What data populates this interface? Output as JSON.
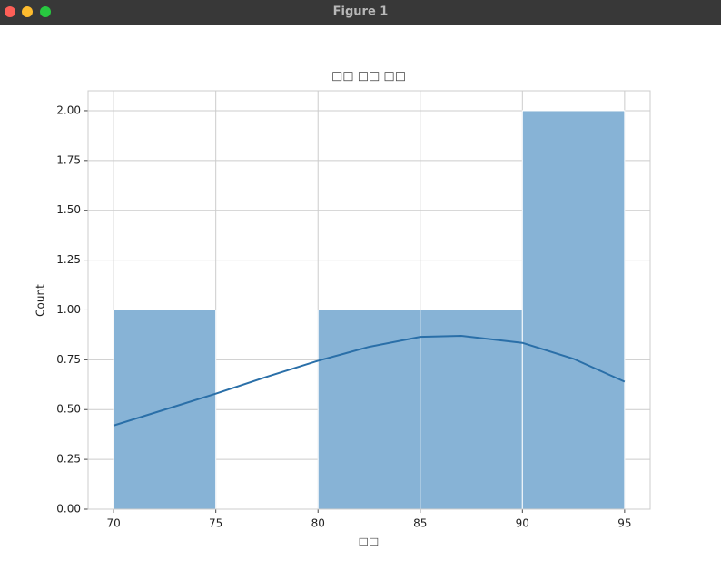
{
  "window": {
    "title": "Figure 1"
  },
  "chart_data": {
    "type": "histogram",
    "title": "□□ □□ □□",
    "xlabel": "□□",
    "ylabel": "Count",
    "bins": [
      70,
      75,
      80,
      85,
      90,
      95
    ],
    "values": [
      1,
      0,
      1,
      1,
      2
    ],
    "color": "#87b3d6",
    "kde": {
      "x": [
        70,
        72.5,
        75,
        77.5,
        80,
        82.5,
        85,
        87,
        90,
        92.5,
        95
      ],
      "values": [
        0.42,
        0.5,
        0.58,
        0.665,
        0.745,
        0.815,
        0.865,
        0.87,
        0.835,
        0.755,
        0.64
      ],
      "color": "#2a6fa8"
    },
    "xlim": [
      68.75,
      96.25
    ],
    "ylim": [
      0,
      2.1
    ],
    "xticks": [
      70,
      75,
      80,
      85,
      90,
      95
    ],
    "yticks": [
      {
        "value": 0,
        "label": "0.00"
      },
      {
        "value": 0.25,
        "label": "0.25"
      },
      {
        "value": 0.5,
        "label": "0.50"
      },
      {
        "value": 0.75,
        "label": "0.75"
      },
      {
        "value": 1,
        "label": "1.00"
      },
      {
        "value": 1.25,
        "label": "1.25"
      },
      {
        "value": 1.5,
        "label": "1.50"
      },
      {
        "value": 1.75,
        "label": "1.75"
      },
      {
        "value": 2,
        "label": "2.00"
      }
    ],
    "grid": true
  }
}
